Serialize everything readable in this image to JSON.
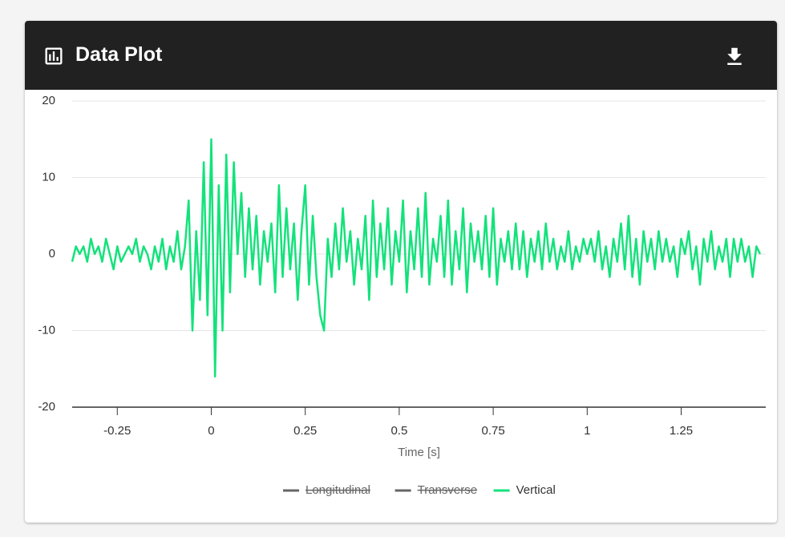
{
  "header": {
    "title": "Data Plot"
  },
  "chart_data": {
    "type": "line",
    "xlabel": "Time [s]",
    "xlim": [
      -0.37,
      1.475
    ],
    "ylim": [
      -20,
      20
    ],
    "xticks": [
      -0.25,
      0,
      0.25,
      0.5,
      0.75,
      1,
      1.25
    ],
    "yticks": [
      -20,
      -10,
      0,
      10,
      20
    ],
    "grid": true,
    "legend": "bottom",
    "x": [
      -0.37,
      -0.36,
      -0.35,
      -0.34,
      -0.33,
      -0.32,
      -0.31,
      -0.3,
      -0.29,
      -0.28,
      -0.27,
      -0.26,
      -0.25,
      -0.24,
      -0.23,
      -0.22,
      -0.21,
      -0.2,
      -0.19,
      -0.18,
      -0.17,
      -0.16,
      -0.15,
      -0.14,
      -0.13,
      -0.12,
      -0.11,
      -0.1,
      -0.09,
      -0.08,
      -0.07,
      -0.06,
      -0.05,
      -0.04,
      -0.03,
      -0.02,
      -0.01,
      0,
      0.01,
      0.02,
      0.03,
      0.04,
      0.05,
      0.06,
      0.07,
      0.08,
      0.09,
      0.1,
      0.11,
      0.12,
      0.13,
      0.14,
      0.15,
      0.16,
      0.17,
      0.18,
      0.19,
      0.2,
      0.21,
      0.22,
      0.23,
      0.24,
      0.25,
      0.26,
      0.27,
      0.28,
      0.29,
      0.3,
      0.31,
      0.32,
      0.33,
      0.34,
      0.35,
      0.36,
      0.37,
      0.38,
      0.39,
      0.4,
      0.41,
      0.42,
      0.43,
      0.44,
      0.45,
      0.46,
      0.47,
      0.48,
      0.49,
      0.5,
      0.51,
      0.52,
      0.53,
      0.54,
      0.55,
      0.56,
      0.57,
      0.58,
      0.59,
      0.6,
      0.61,
      0.62,
      0.63,
      0.64,
      0.65,
      0.66,
      0.67,
      0.68,
      0.69,
      0.7,
      0.71,
      0.72,
      0.73,
      0.74,
      0.75,
      0.76,
      0.77,
      0.78,
      0.79,
      0.8,
      0.81,
      0.82,
      0.83,
      0.84,
      0.85,
      0.86,
      0.87,
      0.88,
      0.89,
      0.9,
      0.91,
      0.92,
      0.93,
      0.94,
      0.95,
      0.96,
      0.97,
      0.98,
      0.99,
      1,
      1.01,
      1.02,
      1.03,
      1.04,
      1.05,
      1.06,
      1.07,
      1.08,
      1.09,
      1.1,
      1.11,
      1.12,
      1.13,
      1.14,
      1.15,
      1.16,
      1.17,
      1.18,
      1.19,
      1.2,
      1.21,
      1.22,
      1.23,
      1.24,
      1.25,
      1.26,
      1.27,
      1.28,
      1.29,
      1.3,
      1.31,
      1.32,
      1.33,
      1.34,
      1.35,
      1.36,
      1.37,
      1.38,
      1.39,
      1.4,
      1.41,
      1.42,
      1.43,
      1.44,
      1.45,
      1.46
    ],
    "series": [
      {
        "name": "Longitudinal",
        "color": "#666666",
        "hidden": true
      },
      {
        "name": "Transverse",
        "color": "#666666",
        "hidden": true
      },
      {
        "name": "Vertical",
        "color": "#13e27b",
        "hidden": false,
        "values": [
          -1,
          1,
          0,
          1,
          -1,
          2,
          0,
          1,
          -1,
          2,
          0,
          -2,
          1,
          -1,
          0,
          1,
          0,
          2,
          -1,
          1,
          0,
          -2,
          1,
          -1,
          2,
          -2,
          1,
          -1,
          3,
          -2,
          1,
          7,
          -10,
          3,
          -6,
          12,
          -8,
          15,
          -16,
          9,
          -10,
          13,
          -5,
          12,
          0,
          8,
          -3,
          6,
          -2,
          5,
          -4,
          3,
          -1,
          4,
          -5,
          9,
          -3,
          6,
          -2,
          4,
          -6,
          3,
          9,
          -4,
          5,
          -3,
          -8,
          -10,
          2,
          -3,
          4,
          -2,
          6,
          -1,
          3,
          -4,
          2,
          -2,
          5,
          -6,
          7,
          -3,
          4,
          -2,
          6,
          -4,
          3,
          -1,
          7,
          -5,
          3,
          -2,
          6,
          -3,
          8,
          -4,
          2,
          -1,
          5,
          -3,
          7,
          -4,
          3,
          -2,
          6,
          -5,
          4,
          -1,
          3,
          -2,
          5,
          -3,
          6,
          -4,
          2,
          -1,
          3,
          -2,
          4,
          -2,
          3,
          -3,
          2,
          -1,
          3,
          -2,
          4,
          -1,
          2,
          -2,
          1,
          -1,
          3,
          -2,
          1,
          -1,
          2,
          0,
          2,
          -1,
          3,
          -2,
          1,
          -3,
          2,
          -1,
          4,
          -2,
          5,
          -3,
          2,
          -4,
          3,
          -1,
          2,
          -2,
          3,
          -1,
          2,
          -1,
          1,
          -3,
          2,
          0,
          3,
          -2,
          1,
          -4,
          2,
          -1,
          3,
          -2,
          1,
          -1,
          2,
          -3,
          2,
          -1,
          2,
          -1,
          1,
          -3,
          1,
          0
        ]
      }
    ]
  }
}
